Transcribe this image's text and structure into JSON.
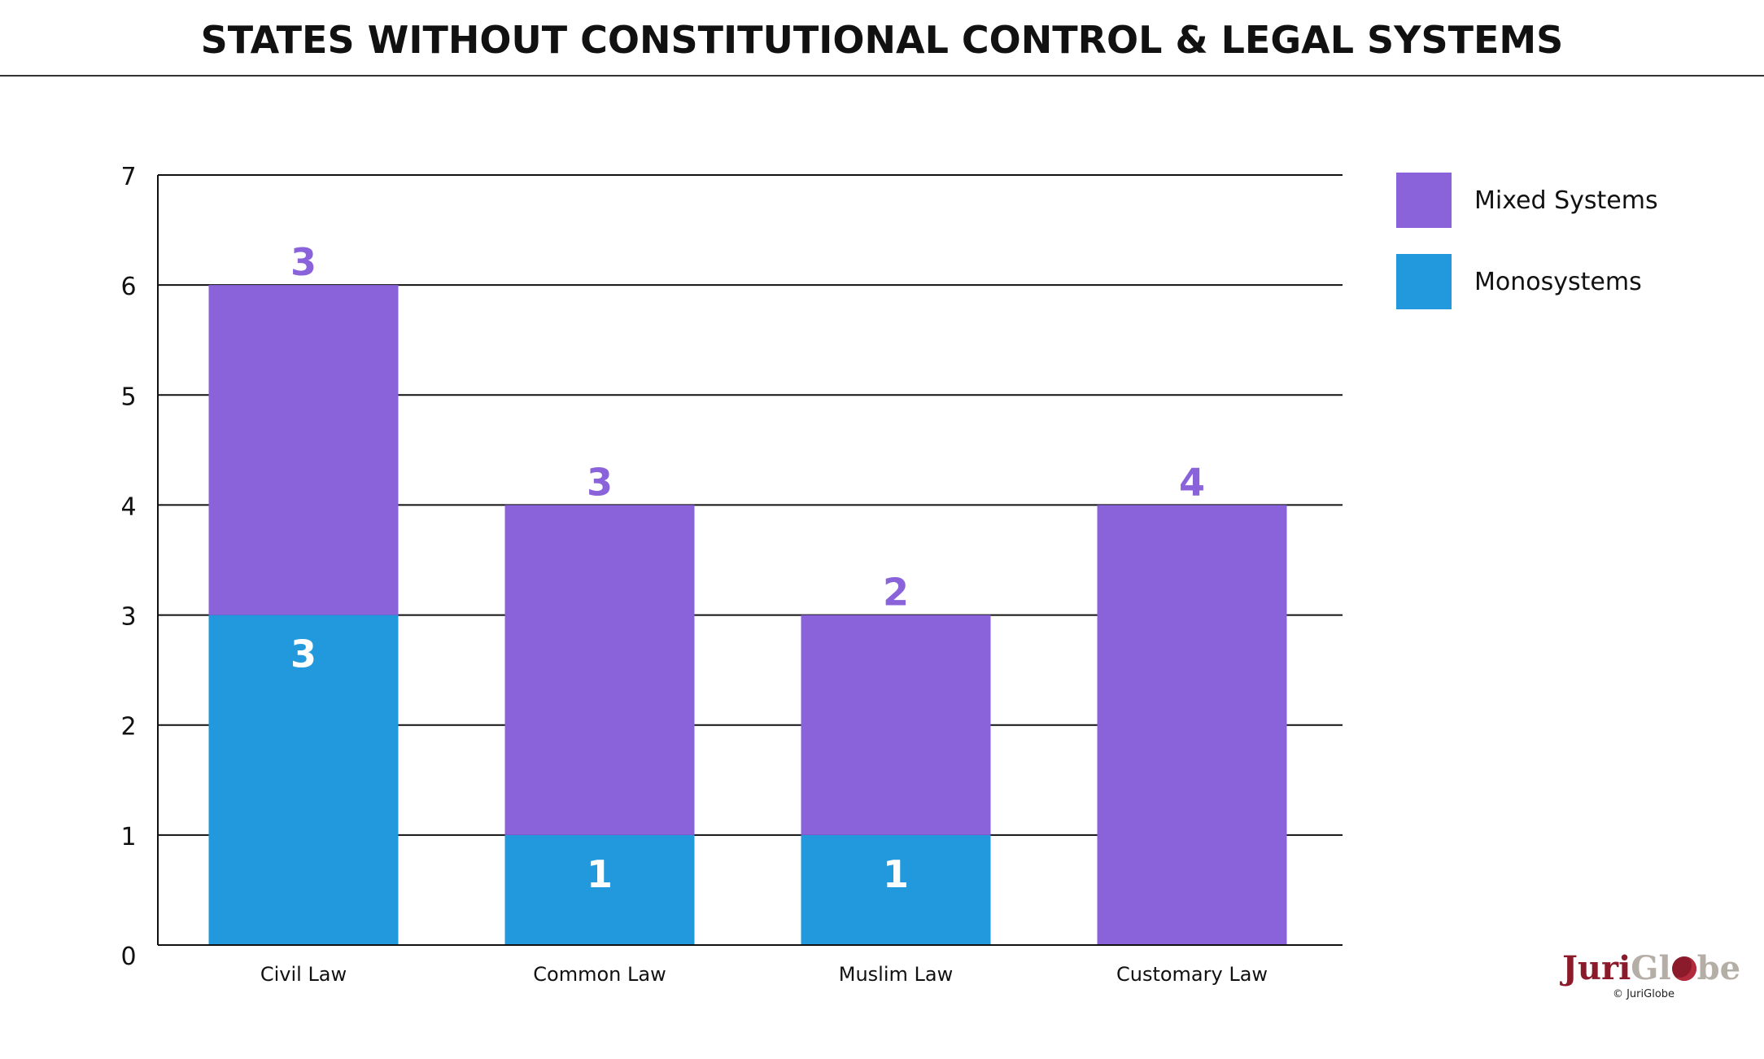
{
  "page": {
    "title": "STATES WITHOUT CONSTITUTIONAL CONTROL & LEGAL SYSTEMS"
  },
  "colors": {
    "mixed": "#8a63db",
    "mono": "#2299dd",
    "mixed_label": "#8a63db",
    "mono_label": "#ffffff"
  },
  "chart_data": {
    "type": "bar",
    "stacked": true,
    "categories": [
      "Civil Law",
      "Common Law",
      "Muslim Law",
      "Customary Law"
    ],
    "series": [
      {
        "name": "Monosystems",
        "values": [
          3,
          1,
          1,
          0
        ],
        "labels": [
          "3",
          "1",
          "1",
          ""
        ]
      },
      {
        "name": "Mixed Systems",
        "values": [
          3,
          3,
          2,
          4
        ],
        "labels": [
          "3",
          "3",
          "2",
          "4"
        ]
      }
    ],
    "yticks": [
      "0",
      "1",
      "2",
      "3",
      "4",
      "5",
      "6",
      "7"
    ],
    "ylim": [
      0,
      7
    ],
    "grid": true,
    "legend_position": "right",
    "title": "STATES WITHOUT CONSTITUTIONAL CONTROL & LEGAL SYSTEMS",
    "xlabel": "",
    "ylabel": ""
  },
  "legend": {
    "items": [
      {
        "label": "Mixed Systems",
        "color": "#8a63db"
      },
      {
        "label": "Monosystems",
        "color": "#2299dd"
      }
    ]
  },
  "brand": {
    "logo_part1": "Juri",
    "logo_part2": "Gl",
    "logo_part3": "be",
    "copyright": "© JuriGlobe"
  }
}
